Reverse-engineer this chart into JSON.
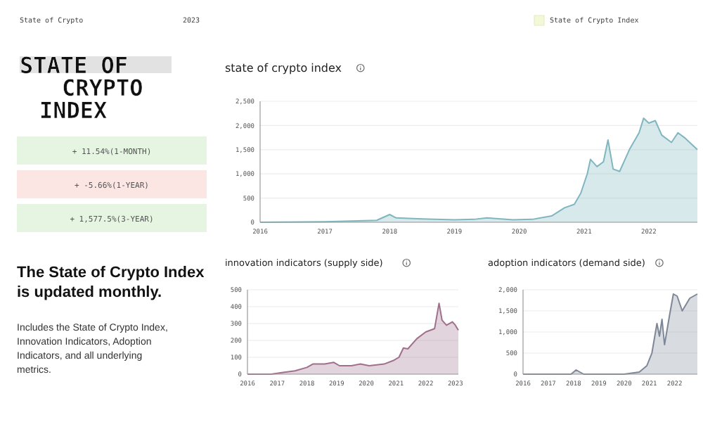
{
  "chart_data": [
    {
      "type": "other",
      "title": "STATE OF CRYPTO INDEX",
      "annotations": [
        "State of Crypto",
        "2023",
        "State of Crypto Index",
        "+ 11.54%(1-MONTH)",
        "+ -5.66%(1-YEAR)",
        "+ 1,577.5%(3-YEAR)",
        "The State of Crypto Index is updated monthly.",
        "Includes the State of Crypto Index, Innovation Indicators, Adoption Indicators, and all underlying metrics."
      ],
      "colors": [
        "#f4f7d8",
        "#e6f5e1",
        "#fbe6e4",
        "#e6f5e1"
      ]
    },
    {
      "type": "area",
      "title": "state of crypto index",
      "x": [
        2016,
        2017,
        2017.8,
        2018.0,
        2018.1,
        2018.5,
        2019,
        2019.3,
        2019.5,
        2019.9,
        2020.2,
        2020.5,
        2020.7,
        2020.85,
        2020.95,
        2021.05,
        2021.1,
        2021.2,
        2021.3,
        2021.37,
        2021.45,
        2021.55,
        2021.7,
        2021.85,
        2021.92,
        2022.0,
        2022.1,
        2022.2,
        2022.35,
        2022.45,
        2022.55,
        2022.75
      ],
      "series": [
        {
          "color": "#7fb6c0",
          "values": [
            0,
            10,
            40,
            160,
            90,
            70,
            50,
            60,
            90,
            50,
            60,
            130,
            300,
            370,
            600,
            1000,
            1300,
            1150,
            1250,
            1700,
            1100,
            1050,
            1500,
            1850,
            2150,
            2050,
            2100,
            1800,
            1650,
            1850,
            1750,
            1500
          ]
        }
      ],
      "xlim": [
        2016,
        2022.75
      ],
      "xticks": [
        2016,
        2017,
        2018,
        2019,
        2020,
        2021,
        2022
      ],
      "ylim": [
        0,
        2500
      ],
      "yticks": [
        0,
        500,
        {
          "value": 1000,
          "label": "1,000"
        },
        {
          "value": 1500,
          "label": "1,500"
        },
        {
          "value": 2000,
          "label": "2,000"
        },
        {
          "value": 2500,
          "label": "2,500"
        }
      ],
      "grid": "y"
    },
    {
      "type": "area",
      "title": "innovation indicators (supply side)",
      "x": [
        2016,
        2016.8,
        2017.2,
        2017.6,
        2018.0,
        2018.2,
        2018.6,
        2018.9,
        2019.1,
        2019.5,
        2019.8,
        2020.1,
        2020.6,
        2020.9,
        2021.1,
        2021.25,
        2021.4,
        2021.7,
        2022.0,
        2022.3,
        2022.45,
        2022.55,
        2022.7,
        2022.9,
        2023.0,
        2023.1
      ],
      "series": [
        {
          "color": "#a06f8c",
          "values": [
            0,
            0,
            10,
            20,
            40,
            60,
            60,
            70,
            50,
            50,
            60,
            50,
            60,
            80,
            100,
            155,
            150,
            210,
            250,
            270,
            420,
            320,
            290,
            310,
            290,
            260
          ]
        }
      ],
      "xlim": [
        2016,
        2023.1
      ],
      "xticks": [
        2016,
        2017,
        2018,
        2019,
        2020,
        2021,
        2022,
        2023
      ],
      "ylim": [
        0,
        500
      ],
      "yticks": [
        0,
        100,
        200,
        300,
        400,
        500
      ],
      "grid": "y"
    },
    {
      "type": "area",
      "title": "adoption indicators (demand side)",
      "x": [
        2016,
        2017,
        2017.9,
        2018.1,
        2018.4,
        2019,
        2019.5,
        2020,
        2020.6,
        2020.9,
        2021.1,
        2021.3,
        2021.4,
        2021.5,
        2021.6,
        2021.8,
        2021.95,
        2022.1,
        2022.3,
        2022.6,
        2022.9
      ],
      "series": [
        {
          "color": "#7d8797",
          "values": [
            0,
            0,
            0,
            100,
            0,
            0,
            0,
            0,
            50,
            200,
            500,
            1200,
            900,
            1300,
            700,
            1400,
            1900,
            1850,
            1500,
            1800,
            1900
          ]
        }
      ],
      "xlim": [
        2016,
        2022.9
      ],
      "xticks": [
        2016,
        2017,
        2018,
        2019,
        2020,
        2021,
        2022
      ],
      "ylim": [
        0,
        2000
      ],
      "yticks": [
        0,
        500,
        {
          "value": 1000,
          "label": "1,000"
        },
        {
          "value": 1500,
          "label": "1,500"
        },
        {
          "value": 2000,
          "label": "2,000"
        }
      ],
      "grid": "y"
    }
  ]
}
